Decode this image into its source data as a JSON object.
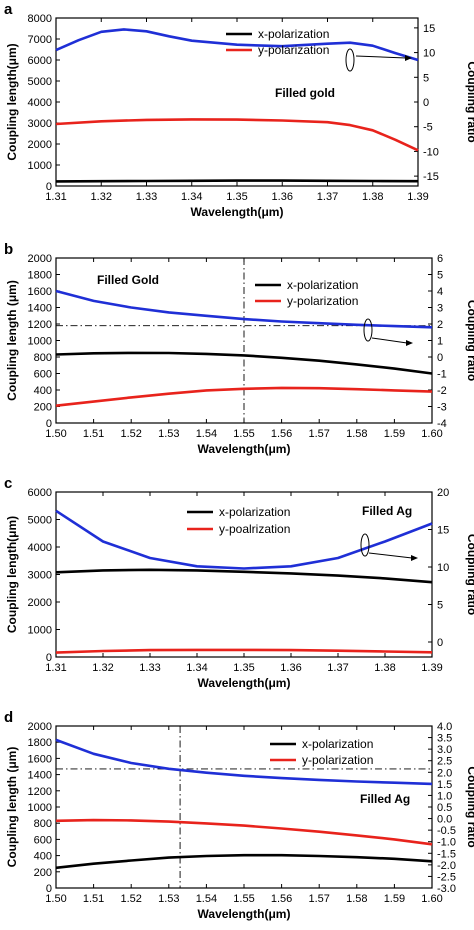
{
  "chart_data": [
    {
      "panel": "a",
      "type": "line",
      "xlabel": "Wavelength(μm)",
      "ylabel": "Coupling length(μm)",
      "y2label": "Coupling ratio",
      "xlim": [
        1.31,
        1.39
      ],
      "ylim": [
        0,
        8000
      ],
      "y2lim": [
        -17,
        17
      ],
      "xticks": [
        "1.31",
        "1.32",
        "1.33",
        "1.34",
        "1.35",
        "1.36",
        "1.37",
        "1.38",
        "1.39"
      ],
      "yticks": [
        "0",
        "1000",
        "2000",
        "3000",
        "4000",
        "5000",
        "6000",
        "7000",
        "8000"
      ],
      "y2ticks": [
        "-15",
        "-10",
        "-5",
        "0",
        "5",
        "10",
        "15"
      ],
      "annotation": "Filled gold",
      "grid": false,
      "legend_position": "top-right",
      "series": [
        {
          "name": "x-polarization",
          "color": "#000000",
          "axis": "left",
          "x": [
            1.31,
            1.32,
            1.33,
            1.34,
            1.35,
            1.36,
            1.37,
            1.38,
            1.39
          ],
          "values": [
            220,
            230,
            240,
            250,
            255,
            255,
            250,
            240,
            230
          ]
        },
        {
          "name": "y-polarization",
          "color": "#e8231c",
          "axis": "left",
          "x": [
            1.31,
            1.32,
            1.33,
            1.34,
            1.35,
            1.36,
            1.37,
            1.375,
            1.38,
            1.385,
            1.39
          ],
          "values": [
            2950,
            3080,
            3150,
            3170,
            3160,
            3120,
            3040,
            2900,
            2650,
            2200,
            1700
          ]
        },
        {
          "name": "",
          "color": "#1f2fd6",
          "axis": "right",
          "x": [
            1.31,
            1.315,
            1.32,
            1.325,
            1.33,
            1.335,
            1.34,
            1.35,
            1.36,
            1.37,
            1.375,
            1.38,
            1.385,
            1.39
          ],
          "values": [
            10.5,
            12.5,
            14.2,
            14.7,
            14.3,
            13.3,
            12.4,
            11.6,
            11.3,
            11.8,
            12.0,
            11.4,
            9.9,
            8.5
          ]
        }
      ]
    },
    {
      "panel": "b",
      "type": "line",
      "xlabel": "Wavelength(μm)",
      "ylabel": "Coupling length (μm)",
      "y2label": "Coupling ratio",
      "xlim": [
        1.5,
        1.6
      ],
      "ylim": [
        0,
        2000
      ],
      "y2lim": [
        -4,
        6
      ],
      "xticks": [
        "1.50",
        "1.51",
        "1.52",
        "1.53",
        "1.54",
        "1.55",
        "1.56",
        "1.57",
        "1.58",
        "1.59",
        "1.60"
      ],
      "yticks": [
        "0",
        "200",
        "400",
        "600",
        "800",
        "1000",
        "1200",
        "1400",
        "1600",
        "1800",
        "2000"
      ],
      "y2ticks": [
        "-4",
        "-3",
        "-2",
        "-1",
        "0",
        "1",
        "2",
        "3",
        "4",
        "5",
        "6"
      ],
      "annotation": "Filled Gold",
      "grid": false,
      "legend_position": "top-right",
      "series": [
        {
          "name": "x-polarization",
          "color": "#000000",
          "axis": "left",
          "x": [
            1.5,
            1.51,
            1.52,
            1.53,
            1.54,
            1.55,
            1.56,
            1.57,
            1.58,
            1.59,
            1.6
          ],
          "values": [
            830,
            845,
            850,
            848,
            838,
            820,
            790,
            755,
            710,
            660,
            600
          ]
        },
        {
          "name": "y-polarization",
          "color": "#e8231c",
          "axis": "left",
          "x": [
            1.5,
            1.51,
            1.52,
            1.53,
            1.54,
            1.55,
            1.56,
            1.57,
            1.58,
            1.59,
            1.6
          ],
          "values": [
            210,
            260,
            310,
            355,
            395,
            415,
            425,
            422,
            410,
            395,
            380
          ]
        },
        {
          "name": "",
          "color": "#1f2fd6",
          "axis": "right",
          "x": [
            1.5,
            1.51,
            1.52,
            1.53,
            1.54,
            1.55,
            1.56,
            1.57,
            1.58,
            1.59,
            1.6
          ],
          "values": [
            4.0,
            3.4,
            3.0,
            2.7,
            2.5,
            2.3,
            2.15,
            2.05,
            1.95,
            1.87,
            1.8
          ]
        }
      ]
    },
    {
      "panel": "c",
      "type": "line",
      "xlabel": "Wavelength(μm)",
      "ylabel": "Coupling length(μm)",
      "y2label": "Coupling ratio",
      "xlim": [
        1.31,
        1.39
      ],
      "ylim": [
        0,
        6000
      ],
      "y2lim": [
        -2,
        20
      ],
      "xticks": [
        "1.31",
        "1.32",
        "1.33",
        "1.34",
        "1.35",
        "1.36",
        "1.37",
        "1.38",
        "1.39"
      ],
      "yticks": [
        "0",
        "1000",
        "2000",
        "3000",
        "4000",
        "5000",
        "6000"
      ],
      "y2ticks": [
        "0",
        "5",
        "10",
        "15",
        "20"
      ],
      "annotation": "Filled Ag",
      "grid": false,
      "legend_position": "top-center",
      "series": [
        {
          "name": "x-polarization",
          "color": "#000000",
          "axis": "left",
          "x": [
            1.31,
            1.32,
            1.33,
            1.34,
            1.35,
            1.36,
            1.37,
            1.38,
            1.39
          ],
          "values": [
            3080,
            3150,
            3170,
            3150,
            3100,
            3040,
            2960,
            2860,
            2720
          ]
        },
        {
          "name": "y-poalrization",
          "color": "#e8231c",
          "axis": "left",
          "x": [
            1.31,
            1.32,
            1.33,
            1.34,
            1.35,
            1.36,
            1.37,
            1.38,
            1.39
          ],
          "values": [
            160,
            220,
            250,
            260,
            260,
            250,
            230,
            200,
            170
          ]
        },
        {
          "name": "",
          "color": "#1f2fd6",
          "axis": "right",
          "x": [
            1.31,
            1.32,
            1.33,
            1.34,
            1.35,
            1.36,
            1.37,
            1.38,
            1.39
          ],
          "values": [
            17.5,
            13.4,
            11.2,
            10.1,
            9.8,
            10.1,
            11.2,
            13.4,
            15.8
          ]
        }
      ]
    },
    {
      "panel": "d",
      "type": "line",
      "xlabel": "Wavelength(μm)",
      "ylabel": "Coupling length (μm)",
      "y2label": "Coupling ratio",
      "xlim": [
        1.5,
        1.6
      ],
      "ylim": [
        0,
        2000
      ],
      "y2lim": [
        -3.0,
        4.0
      ],
      "xticks": [
        "1.50",
        "1.51",
        "1.52",
        "1.53",
        "1.54",
        "1.55",
        "1.56",
        "1.57",
        "1.58",
        "1.59",
        "1.60"
      ],
      "yticks": [
        "0",
        "200",
        "400",
        "600",
        "800",
        "1000",
        "1200",
        "1400",
        "1600",
        "1800",
        "2000"
      ],
      "y2ticks": [
        "-3.0",
        "-2.5",
        "-2.0",
        "-1.5",
        "-1.0",
        "-0.5",
        "0.0",
        "0.5",
        "1.0",
        "1.5",
        "2.0",
        "2.5",
        "3.0",
        "3.5",
        "4.0"
      ],
      "annotation": "Filled Ag",
      "grid": false,
      "legend_position": "top-right",
      "series": [
        {
          "name": "x-polarization",
          "color": "#000000",
          "axis": "left",
          "x": [
            1.5,
            1.51,
            1.52,
            1.53,
            1.54,
            1.55,
            1.56,
            1.57,
            1.58,
            1.59,
            1.6
          ],
          "values": [
            250,
            300,
            340,
            375,
            395,
            405,
            405,
            395,
            380,
            360,
            330
          ]
        },
        {
          "name": "y-polarization",
          "color": "#e8231c",
          "axis": "left",
          "x": [
            1.5,
            1.51,
            1.52,
            1.53,
            1.54,
            1.55,
            1.56,
            1.57,
            1.58,
            1.59,
            1.6
          ],
          "values": [
            830,
            838,
            835,
            820,
            798,
            770,
            735,
            695,
            650,
            600,
            540
          ]
        },
        {
          "name": "",
          "color": "#1f2fd6",
          "axis": "right",
          "x": [
            1.5,
            1.51,
            1.52,
            1.53,
            1.54,
            1.55,
            1.56,
            1.57,
            1.58,
            1.59,
            1.6
          ],
          "values": [
            3.4,
            2.8,
            2.4,
            2.15,
            1.98,
            1.85,
            1.75,
            1.67,
            1.6,
            1.55,
            1.5
          ]
        }
      ]
    }
  ]
}
